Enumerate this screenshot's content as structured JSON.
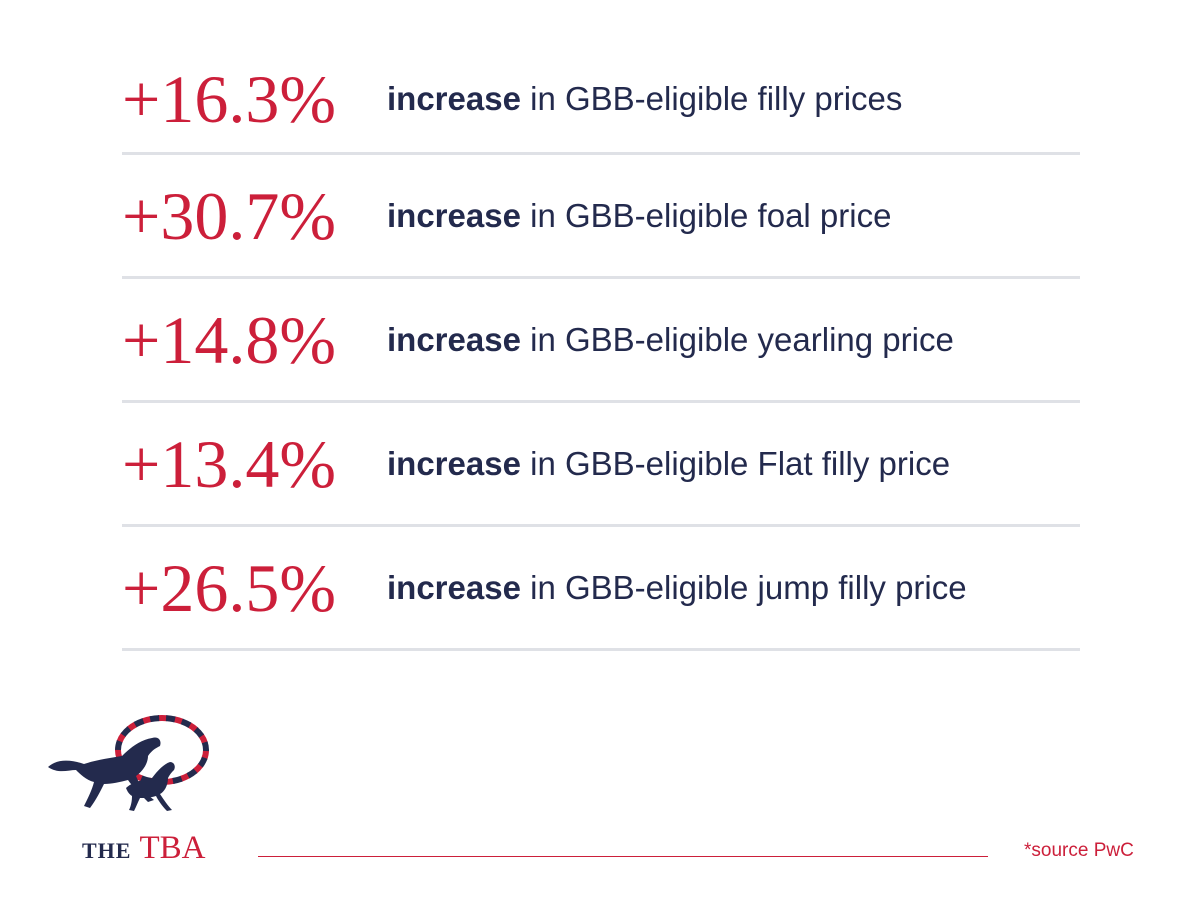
{
  "stats": [
    {
      "value": "+16.3%",
      "bold": "increase",
      "text": " in GBB-eligible filly prices"
    },
    {
      "value": "+30.7%",
      "bold": "increase",
      "text": " in GBB-eligible foal price"
    },
    {
      "value": "+14.8%",
      "bold": "increase",
      "text": " in GBB-eligible yearling price"
    },
    {
      "value": "+13.4%",
      "bold": "increase",
      "text": " in GBB-eligible Flat filly price"
    },
    {
      "value": "+26.5%",
      "bold": "increase",
      "text": " in GBB-eligible jump filly price"
    }
  ],
  "brand": {
    "the": "THE",
    "tba": "TBA",
    "logo_icon": "horses-union-jack-logo"
  },
  "source": "*source PwC",
  "colors": {
    "accent_red": "#cc1f3a",
    "navy": "#232a4d",
    "divider": "#dfe1e6"
  }
}
